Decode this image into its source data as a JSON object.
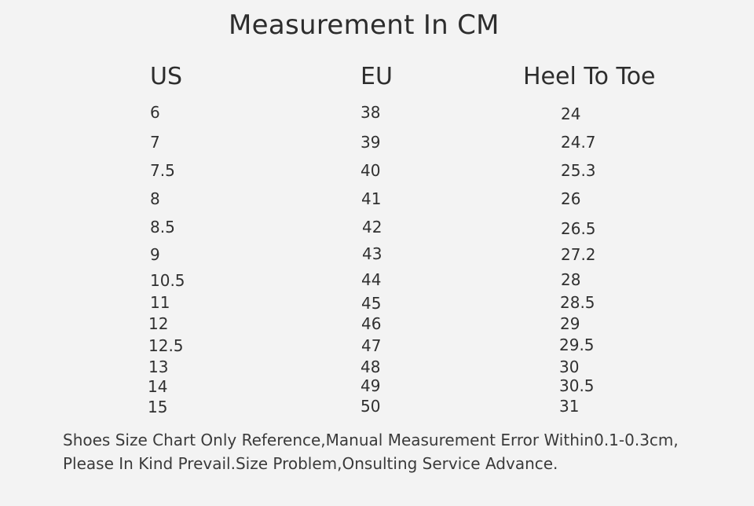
{
  "title": "Measurement In CM",
  "headers": {
    "us": "US",
    "eu": "EU",
    "heel_to_toe": "Heel To Toe"
  },
  "rows": [
    {
      "us": "6",
      "eu": "38",
      "cm": "24"
    },
    {
      "us": "7",
      "eu": "39",
      "cm": "24.7"
    },
    {
      "us": "7.5",
      "eu": "40",
      "cm": "25.3"
    },
    {
      "us": "8",
      "eu": "41",
      "cm": "26"
    },
    {
      "us": "8.5",
      "eu": "42",
      "cm": "26.5"
    },
    {
      "us": "9",
      "eu": "43",
      "cm": "27.2"
    },
    {
      "us": "10.5",
      "eu": "44",
      "cm": "28"
    },
    {
      "us": "11",
      "eu": "45",
      "cm": "28.5"
    },
    {
      "us": "12",
      "eu": "46",
      "cm": "29"
    },
    {
      "us": "12.5",
      "eu": "47",
      "cm": "29.5"
    },
    {
      "us": "13",
      "eu": "48",
      "cm": "30"
    },
    {
      "us": "14",
      "eu": "49",
      "cm": "30.5"
    },
    {
      "us": "15",
      "eu": "50",
      "cm": "31"
    }
  ],
  "note": {
    "line1": "Shoes Size Chart Only Reference,Manual Measurement Error Within0.1-0.3cm,",
    "line2": "Please In Kind Prevail.Size Problem,Onsulting Service Advance."
  }
}
